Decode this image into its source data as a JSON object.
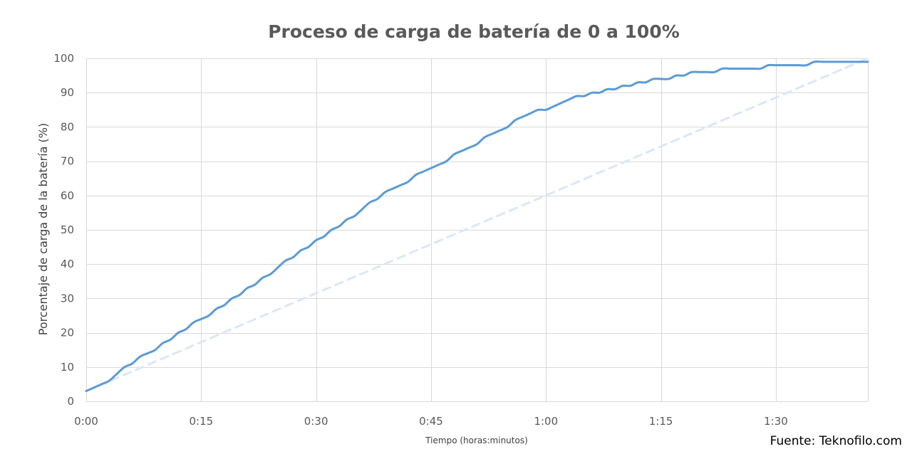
{
  "chart_data": {
    "type": "line",
    "title": "Proceso de carga de batería de 0 a 100%",
    "xlabel": "Tiempo (horas:minutos)",
    "ylabel": "Porcentaje de carga de la batería (%)",
    "x_unit": "minutes",
    "xlim": [
      0,
      102
    ],
    "ylim": [
      0,
      100
    ],
    "x_ticks": [
      {
        "value": 0,
        "label": "0:00"
      },
      {
        "value": 15,
        "label": "0:15"
      },
      {
        "value": 30,
        "label": "0:30"
      },
      {
        "value": 45,
        "label": "0:45"
      },
      {
        "value": 60,
        "label": "1:00"
      },
      {
        "value": 75,
        "label": "1:15"
      },
      {
        "value": 90,
        "label": "1:30"
      }
    ],
    "y_ticks": [
      0,
      10,
      20,
      30,
      40,
      50,
      60,
      70,
      80,
      90,
      100
    ],
    "grid": true,
    "series": [
      {
        "color": "#5b9bd5",
        "style": "solid",
        "x": [
          0,
          1,
          2,
          3,
          4,
          5,
          6,
          7,
          8,
          9,
          10,
          11,
          12,
          13,
          14,
          15,
          16,
          17,
          18,
          19,
          20,
          21,
          22,
          23,
          24,
          25,
          26,
          27,
          28,
          29,
          30,
          31,
          32,
          33,
          34,
          35,
          36,
          37,
          38,
          39,
          40,
          41,
          42,
          43,
          44,
          45,
          46,
          47,
          48,
          49,
          50,
          51,
          52,
          53,
          54,
          55,
          56,
          57,
          58,
          59,
          60,
          61,
          62,
          63,
          64,
          65,
          66,
          67,
          68,
          69,
          70,
          71,
          72,
          73,
          74,
          75,
          76,
          77,
          78,
          79,
          80,
          81,
          82,
          83,
          84,
          85,
          86,
          87,
          88,
          89,
          90,
          91,
          92,
          93,
          94,
          95,
          96,
          97,
          98,
          99,
          100,
          101,
          102
        ],
        "y": [
          3,
          4,
          5,
          6,
          8,
          10,
          11,
          13,
          14,
          15,
          17,
          18,
          20,
          21,
          23,
          24,
          25,
          27,
          28,
          30,
          31,
          33,
          34,
          36,
          37,
          39,
          41,
          42,
          44,
          45,
          47,
          48,
          50,
          51,
          53,
          54,
          56,
          58,
          59,
          61,
          62,
          63,
          64,
          66,
          67,
          68,
          69,
          70,
          72,
          73,
          74,
          75,
          77,
          78,
          79,
          80,
          82,
          83,
          84,
          85,
          85,
          86,
          87,
          88,
          89,
          89,
          90,
          90,
          91,
          91,
          92,
          92,
          93,
          93,
          94,
          94,
          94,
          95,
          95,
          96,
          96,
          96,
          96,
          97,
          97,
          97,
          97,
          97,
          97,
          98,
          98,
          98,
          98,
          98,
          98,
          99,
          99,
          99,
          99,
          99,
          99,
          99,
          99
        ]
      },
      {
        "color": "#dbe7f5",
        "style": "dashed",
        "x": [
          0,
          102
        ],
        "y": [
          3,
          100
        ]
      }
    ]
  },
  "source_text": "Fuente: Teknofilo.com"
}
